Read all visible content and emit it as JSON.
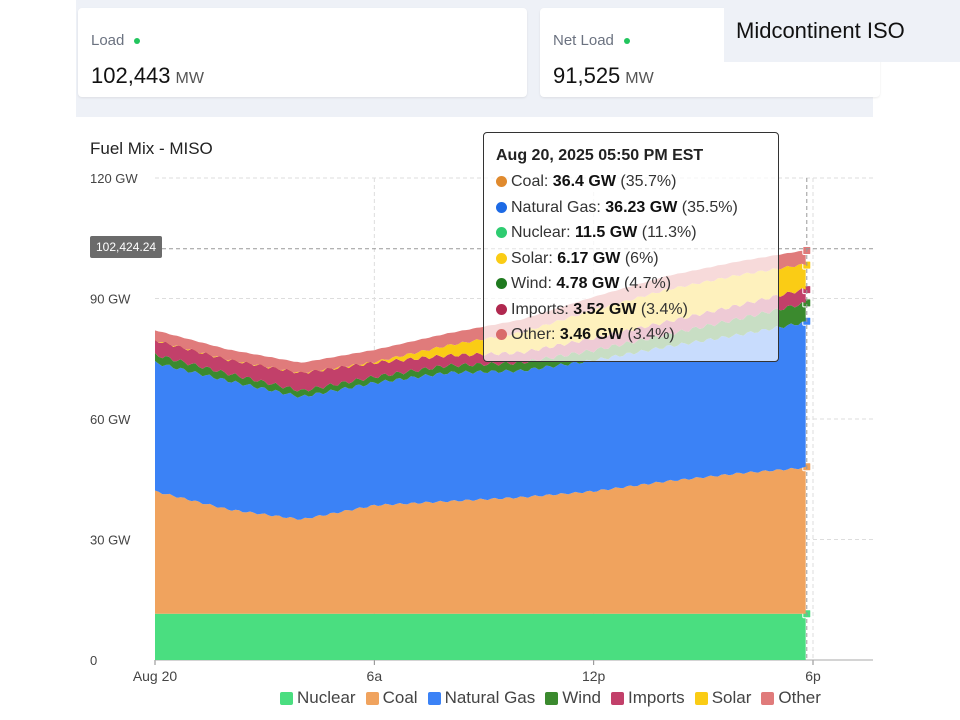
{
  "header": {
    "iso_name": "Midcontinent ISO"
  },
  "cards": [
    {
      "label": "Load",
      "value": "102,443",
      "unit": "MW"
    },
    {
      "label": "Net Load",
      "value": "91,525",
      "unit": "MW"
    }
  ],
  "chart_data": {
    "type": "area",
    "title": "Fuel Mix - MISO",
    "stacked": true,
    "x_hours": [
      0,
      2,
      4,
      6,
      8,
      10,
      12,
      14,
      16,
      17.83
    ],
    "x_ticks": [
      "Aug 20",
      "6a",
      "12p",
      "6p"
    ],
    "y_ticks": [
      "0",
      "30 GW",
      "60 GW",
      "90 GW",
      "120 GW"
    ],
    "ylim": [
      0,
      120
    ],
    "grid": true,
    "legend_position": "bottom",
    "crosshair_label": "102,424.24",
    "series": [
      {
        "name": "Nuclear",
        "color": "#4ade80",
        "values": [
          11.5,
          11.5,
          11.5,
          11.5,
          11.5,
          11.5,
          11.5,
          11.5,
          11.5,
          11.5
        ]
      },
      {
        "name": "Coal",
        "color": "#f0a35e",
        "values": [
          30.5,
          26,
          23.5,
          27,
          28,
          29,
          30.5,
          33,
          35,
          36.4
        ]
      },
      {
        "name": "Natural Gas",
        "color": "#3b82f6",
        "values": [
          32,
          32,
          30.5,
          30.5,
          32,
          31.5,
          32.6,
          33.5,
          34.5,
          36.23
        ]
      },
      {
        "name": "Wind",
        "color": "#3b8a2e",
        "values": [
          2,
          1.8,
          1.5,
          1.5,
          1.8,
          2,
          2.5,
          3,
          4,
          4.78
        ]
      },
      {
        "name": "Imports",
        "color": "#c2406a",
        "values": [
          3.6,
          3.5,
          4.5,
          3.5,
          2.5,
          2.5,
          3,
          3.2,
          3.4,
          3.52
        ]
      },
      {
        "name": "Solar",
        "color": "#facc15",
        "values": [
          0,
          0,
          0,
          0.2,
          2.5,
          5,
          7,
          8,
          7.5,
          6.17
        ]
      },
      {
        "name": "Other",
        "color": "#e07b7b",
        "values": [
          2.5,
          2.5,
          2.5,
          3,
          3,
          3.2,
          3.3,
          3.4,
          3.4,
          3.46
        ]
      }
    ],
    "legend": [
      "Nuclear",
      "Coal",
      "Natural Gas",
      "Wind",
      "Imports",
      "Solar",
      "Other"
    ],
    "tooltip": {
      "title": "Aug 20, 2025 05:50 PM EST",
      "rows": [
        {
          "name": "Coal",
          "value": "36.4 GW",
          "pct": "(35.7%)",
          "color": "#e08a2e"
        },
        {
          "name": "Natural Gas",
          "value": "36.23 GW",
          "pct": "(35.5%)",
          "color": "#1d6ae5"
        },
        {
          "name": "Nuclear",
          "value": "11.5 GW",
          "pct": "(11.3%)",
          "color": "#2ecc71"
        },
        {
          "name": "Solar",
          "value": "6.17 GW",
          "pct": "(6%)",
          "color": "#facc15"
        },
        {
          "name": "Wind",
          "value": "4.78 GW",
          "pct": "(4.7%)",
          "color": "#1f7a1f"
        },
        {
          "name": "Imports",
          "value": "3.52 GW",
          "pct": "(3.4%)",
          "color": "#b0284f"
        },
        {
          "name": "Other",
          "value": "3.46 GW",
          "pct": "(3.4%)",
          "color": "#d96b6b"
        }
      ]
    }
  }
}
